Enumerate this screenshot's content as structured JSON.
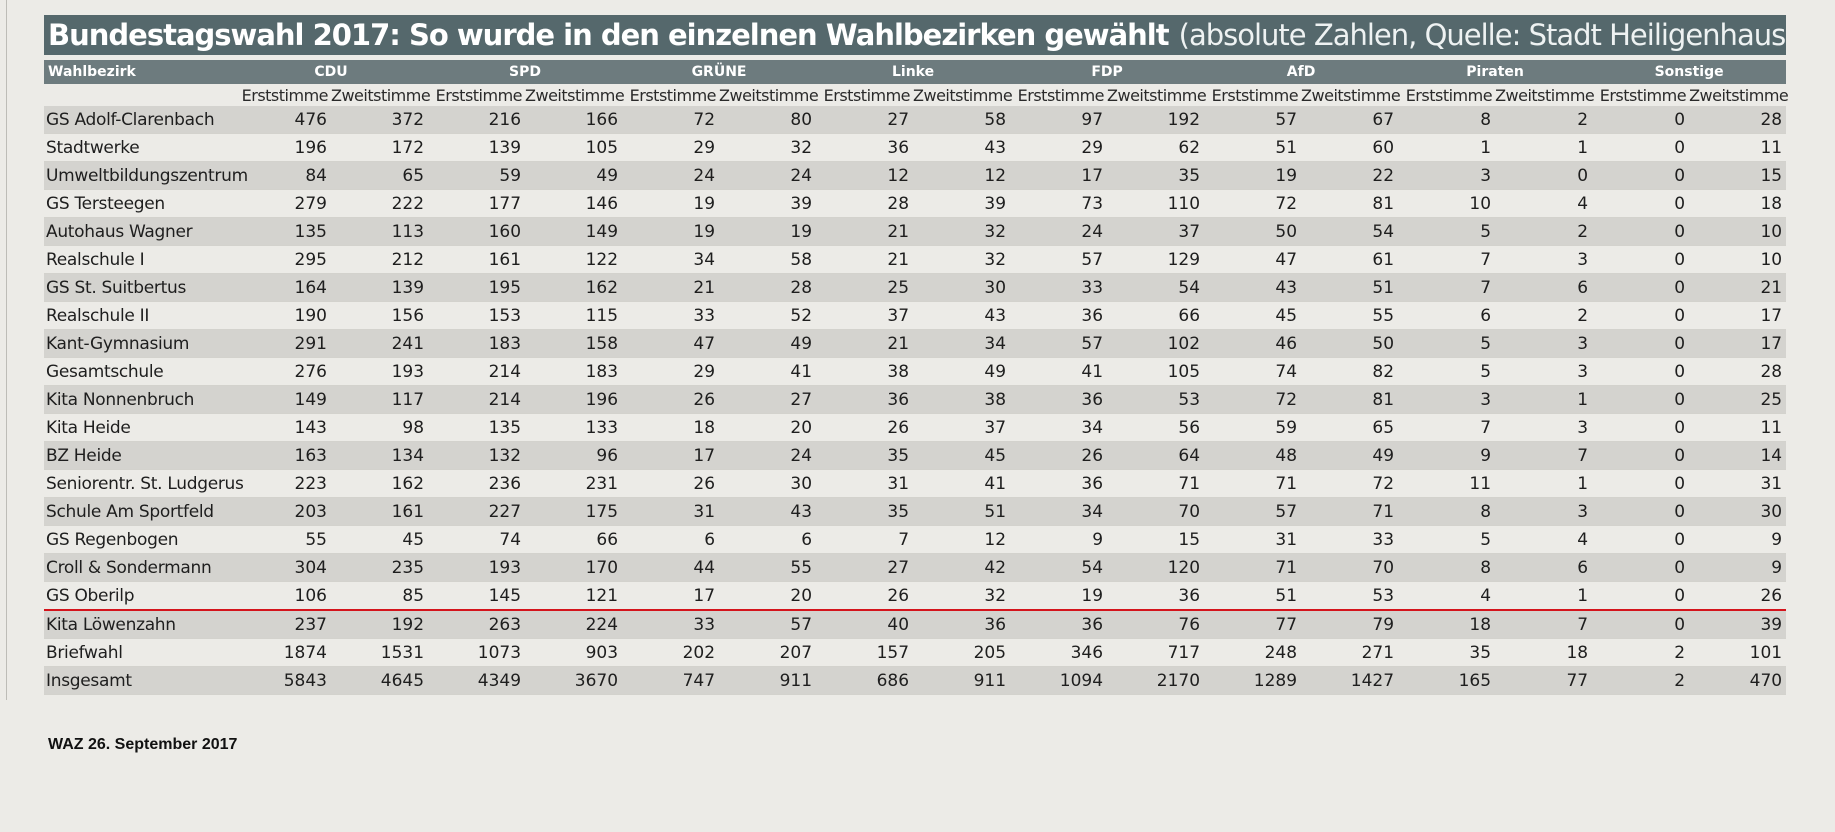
{
  "title": "Bundestagswahl 2017: So wurde in den einzelnen Wahlbezirken gewählt",
  "subtitle": "(absolute Zahlen, Quelle: Stadt Heiligenhaus)",
  "columns": {
    "district_header": "Wahlbezirk",
    "parties": [
      "CDU",
      "SPD",
      "GRÜNE",
      "Linke",
      "FDP",
      "AfD",
      "Piraten",
      "Sonstige"
    ],
    "vote_types": [
      "Erststimme",
      "Zweitstimme"
    ]
  },
  "rows": [
    {
      "name": "GS Adolf-Clarenbach",
      "values": [
        476,
        372,
        216,
        166,
        72,
        80,
        27,
        58,
        97,
        192,
        57,
        67,
        8,
        2,
        0,
        28
      ]
    },
    {
      "name": "Stadtwerke",
      "values": [
        196,
        172,
        139,
        105,
        29,
        32,
        36,
        43,
        29,
        62,
        51,
        60,
        1,
        1,
        0,
        11
      ]
    },
    {
      "name": "Umweltbildungszentrum",
      "values": [
        84,
        65,
        59,
        49,
        24,
        24,
        12,
        12,
        17,
        35,
        19,
        22,
        3,
        0,
        0,
        15
      ]
    },
    {
      "name": "GS Tersteegen",
      "values": [
        279,
        222,
        177,
        146,
        19,
        39,
        28,
        39,
        73,
        110,
        72,
        81,
        10,
        4,
        0,
        18
      ]
    },
    {
      "name": "Autohaus Wagner",
      "values": [
        135,
        113,
        160,
        149,
        19,
        19,
        21,
        32,
        24,
        37,
        50,
        54,
        5,
        2,
        0,
        10
      ]
    },
    {
      "name": "Realschule I",
      "values": [
        295,
        212,
        161,
        122,
        34,
        58,
        21,
        32,
        57,
        129,
        47,
        61,
        7,
        3,
        0,
        10
      ]
    },
    {
      "name": "GS St. Suitbertus",
      "values": [
        164,
        139,
        195,
        162,
        21,
        28,
        25,
        30,
        33,
        54,
        43,
        51,
        7,
        6,
        0,
        21
      ]
    },
    {
      "name": "Realschule II",
      "values": [
        190,
        156,
        153,
        115,
        33,
        52,
        37,
        43,
        36,
        66,
        45,
        55,
        6,
        2,
        0,
        17
      ]
    },
    {
      "name": "Kant-Gymnasium",
      "values": [
        291,
        241,
        183,
        158,
        47,
        49,
        21,
        34,
        57,
        102,
        46,
        50,
        5,
        3,
        0,
        17
      ]
    },
    {
      "name": "Gesamtschule",
      "values": [
        276,
        193,
        214,
        183,
        29,
        41,
        38,
        49,
        41,
        105,
        74,
        82,
        5,
        3,
        0,
        28
      ]
    },
    {
      "name": "Kita Nonnenbruch",
      "values": [
        149,
        117,
        214,
        196,
        26,
        27,
        36,
        38,
        36,
        53,
        72,
        81,
        3,
        1,
        0,
        25
      ]
    },
    {
      "name": "Kita Heide",
      "values": [
        143,
        98,
        135,
        133,
        18,
        20,
        26,
        37,
        34,
        56,
        59,
        65,
        7,
        3,
        0,
        11
      ]
    },
    {
      "name": "BZ Heide",
      "values": [
        163,
        134,
        132,
        96,
        17,
        24,
        35,
        45,
        26,
        64,
        48,
        49,
        9,
        7,
        0,
        14
      ]
    },
    {
      "name": "Seniorentr. St. Ludgerus",
      "values": [
        223,
        162,
        236,
        231,
        26,
        30,
        31,
        41,
        36,
        71,
        71,
        72,
        11,
        1,
        0,
        31
      ]
    },
    {
      "name": "Schule Am Sportfeld",
      "values": [
        203,
        161,
        227,
        175,
        31,
        43,
        35,
        51,
        34,
        70,
        57,
        71,
        8,
        3,
        0,
        30
      ]
    },
    {
      "name": "GS Regenbogen",
      "values": [
        55,
        45,
        74,
        66,
        6,
        6,
        7,
        12,
        9,
        15,
        31,
        33,
        5,
        4,
        0,
        9
      ]
    },
    {
      "name": "Croll & Sondermann",
      "values": [
        304,
        235,
        193,
        170,
        44,
        55,
        27,
        42,
        54,
        120,
        71,
        70,
        8,
        6,
        0,
        9
      ]
    },
    {
      "name": "GS Oberilp",
      "values": [
        106,
        85,
        145,
        121,
        17,
        20,
        26,
        32,
        19,
        36,
        51,
        53,
        4,
        1,
        0,
        26
      ]
    },
    {
      "name": "Kita Löwenzahn",
      "values": [
        237,
        192,
        263,
        224,
        33,
        57,
        40,
        36,
        36,
        76,
        77,
        79,
        18,
        7,
        0,
        39
      ]
    },
    {
      "name": "Briefwahl",
      "values": [
        1874,
        1531,
        1073,
        903,
        202,
        207,
        157,
        205,
        346,
        717,
        248,
        271,
        35,
        18,
        2,
        101
      ]
    },
    {
      "name": "Insgesamt",
      "values": [
        5843,
        4645,
        4349,
        3670,
        747,
        911,
        686,
        911,
        1094,
        2170,
        1289,
        1427,
        165,
        77,
        2,
        470
      ]
    }
  ],
  "source_note": "WAZ 26. September 2017",
  "colors": {
    "title_bar": "#55686c",
    "header_bar": "#6d7b7e",
    "row_shade": "#d4d3cf",
    "paper": "#ecebe7",
    "highlight_line": "#d4141c"
  }
}
